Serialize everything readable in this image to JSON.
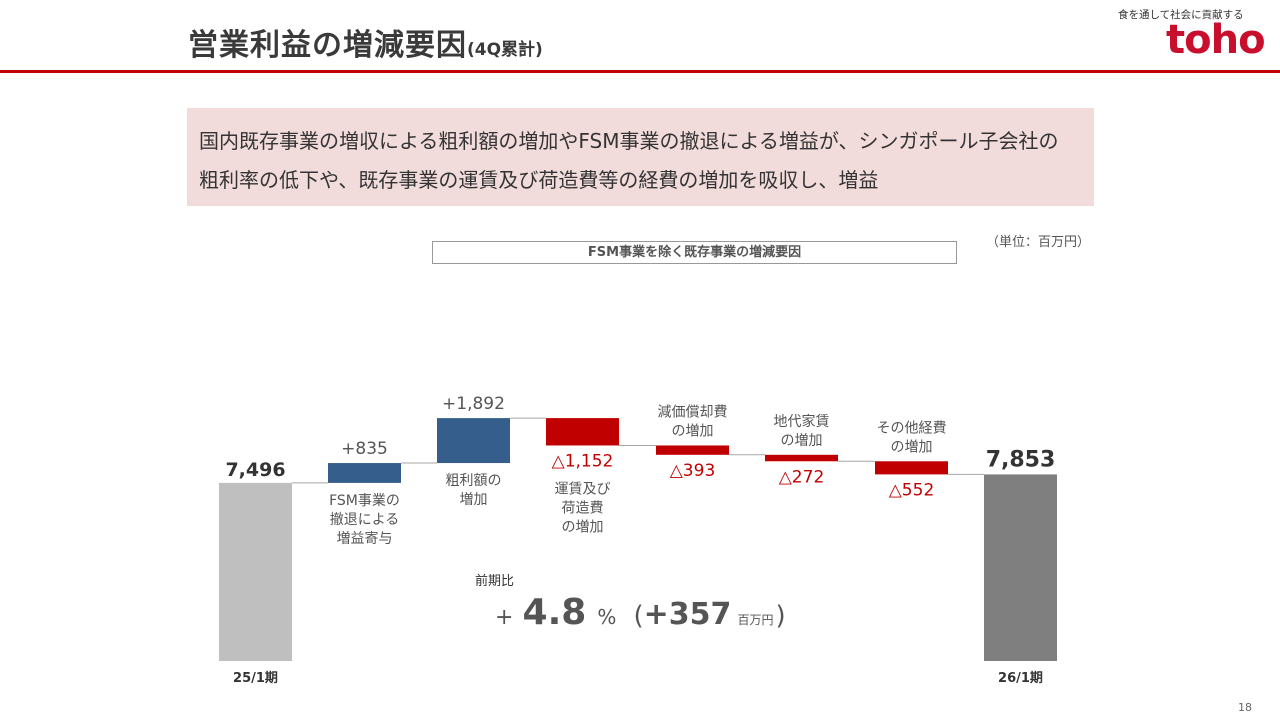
{
  "header": {
    "title": "営業利益の増減要因",
    "title_sub": "(4Q累計)",
    "tagline": "食を通して社会に貢献する",
    "logo": "toho"
  },
  "summary": {
    "line1": "国内既存事業の増収による粗利額の増加やFSM事業の撤退による増益が、シンガポール子会社の",
    "line2": "粗利率の低下や、既存事業の運賃及び荷造費等の経費の増加を吸収し、増益"
  },
  "unit": "（単位：百万円）",
  "bracket_label": "FSM事業を除く既存事業の増減要因",
  "chart_data": {
    "type": "waterfall",
    "start": {
      "category": "25/1期",
      "value": 7496,
      "label": "7,496"
    },
    "end": {
      "category": "26/1期",
      "value": 7853,
      "label": "7,853"
    },
    "steps": [
      {
        "label_lines": [
          "FSM事業の",
          "撤退による",
          "増益寄与"
        ],
        "delta": 835,
        "value_label": "+835"
      },
      {
        "label_lines": [
          "粗利額の",
          "増加"
        ],
        "delta": 1892,
        "value_label": "+1,892"
      },
      {
        "label_lines": [
          "運賃及び",
          "荷造費",
          "の増加"
        ],
        "delta": -1152,
        "value_label": "△1,152"
      },
      {
        "label_lines": [
          "減価償却費",
          "の増加"
        ],
        "delta": -393,
        "value_label": "△393"
      },
      {
        "label_lines": [
          "地代家賃",
          "の増加"
        ],
        "delta": -272,
        "value_label": "△272"
      },
      {
        "label_lines": [
          "その他経費",
          "の増加"
        ],
        "delta": -552,
        "value_label": "△552"
      }
    ],
    "colors": {
      "start": "#bfbfbf",
      "end": "#7f7f7f",
      "increase": "#355e8d",
      "decrease": "#c00000",
      "connector": "#a6a6a6"
    }
  },
  "ratio": {
    "label": "前期比",
    "plus": "+",
    "percent": "4.8",
    "pct_sign": "%",
    "paren_open": "(",
    "amount": "+357",
    "amount_unit": "百万円",
    "paren_close": ")"
  },
  "page_number": "18"
}
